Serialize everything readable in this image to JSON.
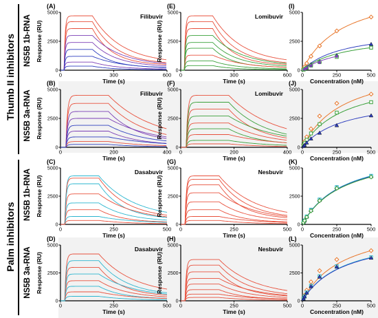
{
  "groups": [
    {
      "label": "Thumb II inhibitors"
    },
    {
      "label": "Palm inhibitors"
    }
  ],
  "row_labels": [
    "NS5B 1b-RNA",
    "NS5B 3a-RNA",
    "NS5B 1b-RNA",
    "NS5B 3a-RNA"
  ],
  "colors": {
    "red": "#e8503c",
    "green": "#3aa03a",
    "blue": "#2f3fbf",
    "purple": "#7b3fb5",
    "cyan": "#2ab5cf",
    "orange": "#e8762a",
    "band": "#f2f2f2"
  },
  "chart_data": [
    {
      "type": "line",
      "panel": "(A)",
      "drug": "Filibuvir",
      "xlabel": "Time (s)",
      "ylabel": "Response (RU)",
      "xlim": [
        0,
        600
      ],
      "ylim": [
        0,
        5000
      ],
      "xticks": [
        0,
        300,
        600
      ],
      "yticks": [
        0,
        2500,
        5000
      ],
      "inject_end": 180,
      "plateaus": [
        4700,
        4200,
        3600,
        3000,
        2400,
        1800,
        1200,
        700,
        350
      ],
      "palette": [
        "red",
        "red",
        "red",
        "purple",
        "purple",
        "blue",
        "blue",
        "purple",
        "blue"
      ]
    },
    {
      "type": "line",
      "panel": "(B)",
      "drug": "Filibuvir",
      "xlabel": "Time (s)",
      "ylabel": "Response (RU)",
      "xlim": [
        0,
        400
      ],
      "ylim": [
        0,
        5000
      ],
      "xticks": [
        0,
        200,
        400
      ],
      "yticks": [
        0,
        2500,
        5000
      ],
      "inject_end": 180,
      "plateaus": [
        4500,
        3800,
        3100,
        2500,
        1900,
        1400,
        900,
        500,
        250
      ],
      "palette": [
        "red",
        "red",
        "purple",
        "purple",
        "blue",
        "purple",
        "blue",
        "red",
        "blue"
      ]
    },
    {
      "type": "line",
      "panel": "(C)",
      "drug": "Dasabuvir",
      "xlabel": "Time (s)",
      "ylabel": "Response (RU)",
      "xlim": [
        0,
        500
      ],
      "ylim": [
        0,
        5000
      ],
      "xticks": [
        0,
        250,
        500
      ],
      "yticks": [
        0,
        2500,
        5000
      ],
      "inject_end": 180,
      "plateaus": [
        4300,
        4100,
        3600,
        2700,
        1900,
        1300,
        700,
        350
      ],
      "palette": [
        "cyan",
        "red",
        "cyan",
        "red",
        "cyan",
        "red",
        "cyan",
        "red"
      ]
    },
    {
      "type": "line",
      "panel": "(D)",
      "drug": "Dasabuvir",
      "xlabel": "Time (s)",
      "ylabel": "Response (RU)",
      "xlim": [
        0,
        500
      ],
      "ylim": [
        0,
        5000
      ],
      "xticks": [
        0,
        250,
        500
      ],
      "yticks": [
        0,
        2500,
        5000
      ],
      "inject_end": 180,
      "plateaus": [
        4200,
        3600,
        3000,
        2400,
        1800,
        1300,
        800,
        400
      ],
      "palette": [
        "red",
        "cyan",
        "red",
        "cyan",
        "red",
        "cyan",
        "red",
        "cyan"
      ]
    },
    {
      "type": "line",
      "panel": "(E)",
      "drug": "Lomibuvir",
      "xlabel": "Time (s)",
      "ylabel": "Response (RU)",
      "xlim": [
        0,
        600
      ],
      "ylim": [
        0,
        5000
      ],
      "xticks": [
        0,
        300,
        600
      ],
      "yticks": [
        0,
        2500,
        5000
      ],
      "inject_end": 180,
      "plateaus": [
        4700,
        4200,
        3600,
        3000,
        2400,
        1900,
        1300,
        800,
        400
      ],
      "palette": [
        "red",
        "red",
        "red",
        "green",
        "green",
        "green",
        "red",
        "green",
        "green"
      ]
    },
    {
      "type": "line",
      "panel": "(F)",
      "drug": "Lomibuvir",
      "xlabel": "Time (s)",
      "ylabel": "Response (RU)",
      "xlim": [
        0,
        400
      ],
      "ylim": [
        0,
        5000
      ],
      "xticks": [
        0,
        200,
        400
      ],
      "yticks": [
        0,
        2500,
        5000
      ],
      "inject_end": 180,
      "plateaus": [
        4500,
        3900,
        3300,
        2700,
        2100,
        1600,
        1100,
        600,
        300
      ],
      "palette": [
        "red",
        "green",
        "red",
        "green",
        "red",
        "green",
        "red",
        "green",
        "red"
      ]
    },
    {
      "type": "line",
      "panel": "(G)",
      "drug": "Nesbuvir",
      "xlabel": "Time (s)",
      "ylabel": "Response (RU)",
      "xlim": [
        0,
        500
      ],
      "ylim": [
        0,
        5000
      ],
      "xticks": [
        0,
        250,
        500
      ],
      "yticks": [
        0,
        2500,
        5000
      ],
      "inject_end": 180,
      "plateaus": [
        4300,
        4000,
        3500,
        2800,
        2000,
        1300,
        700,
        350
      ],
      "palette": [
        "red",
        "red",
        "red",
        "red",
        "red",
        "red",
        "red",
        "red"
      ]
    },
    {
      "type": "line",
      "panel": "(H)",
      "drug": "Nesbuvir",
      "xlabel": "Time (s)",
      "ylabel": "Response (RU)",
      "xlim": [
        0,
        500
      ],
      "ylim": [
        0,
        5000
      ],
      "xticks": [
        0,
        250,
        500
      ],
      "yticks": [
        0,
        2500,
        5000
      ],
      "inject_end": 180,
      "plateaus": [
        3700,
        3200,
        2600,
        2000,
        1500,
        1000,
        600,
        300
      ],
      "palette": [
        "red",
        "red",
        "red",
        "red",
        "red",
        "red",
        "red",
        "red"
      ]
    },
    {
      "type": "scatter",
      "panel": "(I)",
      "xlabel": "Concentration (nM)",
      "ylabel": "",
      "xlim": [
        0,
        500
      ],
      "ylim": [
        0,
        5000
      ],
      "xticks": [
        0,
        250,
        500
      ],
      "yticks": [
        0,
        2500,
        5000
      ],
      "series": [
        {
          "marker": "diamond",
          "color": "orange",
          "x": [
            7.8,
            15.6,
            31.3,
            62.5,
            125,
            250,
            500
          ],
          "y": [
            150,
            300,
            600,
            1200,
            2100,
            3400,
            4600
          ]
        },
        {
          "marker": "triangle",
          "color": "blue",
          "x": [
            7.8,
            15.6,
            31.3,
            62.5,
            125,
            250,
            500
          ],
          "y": [
            60,
            120,
            250,
            500,
            800,
            1300,
            2250
          ]
        },
        {
          "marker": "square",
          "color": "green",
          "x": [
            7.8,
            15.6,
            31.3,
            62.5,
            125,
            250,
            500
          ],
          "y": [
            50,
            100,
            200,
            400,
            700,
            1150,
            1950
          ]
        },
        {
          "marker": "dot",
          "color": "purple",
          "x": [
            15.6,
            31.3,
            62.5,
            125,
            250
          ],
          "y": [
            80,
            180,
            380,
            650,
            1200
          ]
        }
      ]
    },
    {
      "type": "scatter",
      "panel": "(J)",
      "xlabel": "Concentration (nM)",
      "ylabel": "",
      "xlim": [
        0,
        500
      ],
      "ylim": [
        0,
        5000
      ],
      "xticks": [
        0,
        250,
        500
      ],
      "yticks": [
        0,
        2500,
        5000
      ],
      "series": [
        {
          "marker": "diamond",
          "color": "orange",
          "x": [
            7.8,
            15.6,
            31.3,
            62.5,
            125,
            250,
            500
          ],
          "y": [
            250,
            500,
            900,
            1600,
            2700,
            3800,
            4600
          ]
        },
        {
          "marker": "square",
          "color": "green",
          "x": [
            7.8,
            15.6,
            31.3,
            62.5,
            125,
            250,
            500
          ],
          "y": [
            180,
            350,
            650,
            1200,
            2000,
            3000,
            3900
          ]
        },
        {
          "marker": "triangle",
          "color": "blue",
          "x": [
            7.8,
            15.6,
            31.3,
            62.5,
            125,
            250,
            500
          ],
          "y": [
            100,
            200,
            400,
            750,
            1250,
            1900,
            2750
          ]
        }
      ]
    },
    {
      "type": "scatter",
      "panel": "(K)",
      "xlabel": "Concentration (nM)",
      "ylabel": "",
      "xlim": [
        0,
        500
      ],
      "ylim": [
        0,
        5000
      ],
      "xticks": [
        0,
        250,
        500
      ],
      "yticks": [
        0,
        2500,
        5000
      ],
      "series": [
        {
          "marker": "square",
          "color": "cyan",
          "x": [
            7.8,
            15.6,
            31.3,
            62.5,
            125,
            250,
            500
          ],
          "y": [
            180,
            350,
            700,
            1300,
            2200,
            3300,
            4300
          ]
        },
        {
          "marker": "triangle",
          "color": "blue",
          "x": [
            7.8,
            15.6,
            31.3,
            62.5,
            125,
            250,
            500
          ],
          "y": [
            170,
            340,
            680,
            1250,
            2150,
            3250,
            4250
          ]
        },
        {
          "marker": "diamond",
          "color": "green",
          "x": [
            7.8,
            15.6,
            31.3,
            62.5,
            125,
            250,
            500
          ],
          "y": [
            160,
            330,
            650,
            1200,
            2100,
            3200,
            4200
          ]
        }
      ]
    },
    {
      "type": "scatter",
      "panel": "(L)",
      "xlabel": "Concentration (nM)",
      "ylabel": "",
      "xlim": [
        0,
        500
      ],
      "ylim": [
        0,
        5000
      ],
      "xticks": [
        0,
        250,
        500
      ],
      "yticks": [
        0,
        2500,
        5000
      ],
      "series": [
        {
          "marker": "diamond",
          "color": "orange",
          "x": [
            7.8,
            15.6,
            31.3,
            62.5,
            125,
            250,
            500
          ],
          "y": [
            250,
            500,
            950,
            1700,
            2700,
            3700,
            4500
          ]
        },
        {
          "marker": "square",
          "color": "cyan",
          "x": [
            7.8,
            15.6,
            31.3,
            62.5,
            125,
            250,
            500
          ],
          "y": [
            200,
            400,
            750,
            1350,
            2200,
            3100,
            3900
          ]
        },
        {
          "marker": "triangle",
          "color": "blue",
          "x": [
            7.8,
            15.6,
            31.3,
            62.5,
            125,
            250,
            500
          ],
          "y": [
            190,
            380,
            720,
            1300,
            2150,
            3050,
            3850
          ]
        }
      ]
    }
  ]
}
